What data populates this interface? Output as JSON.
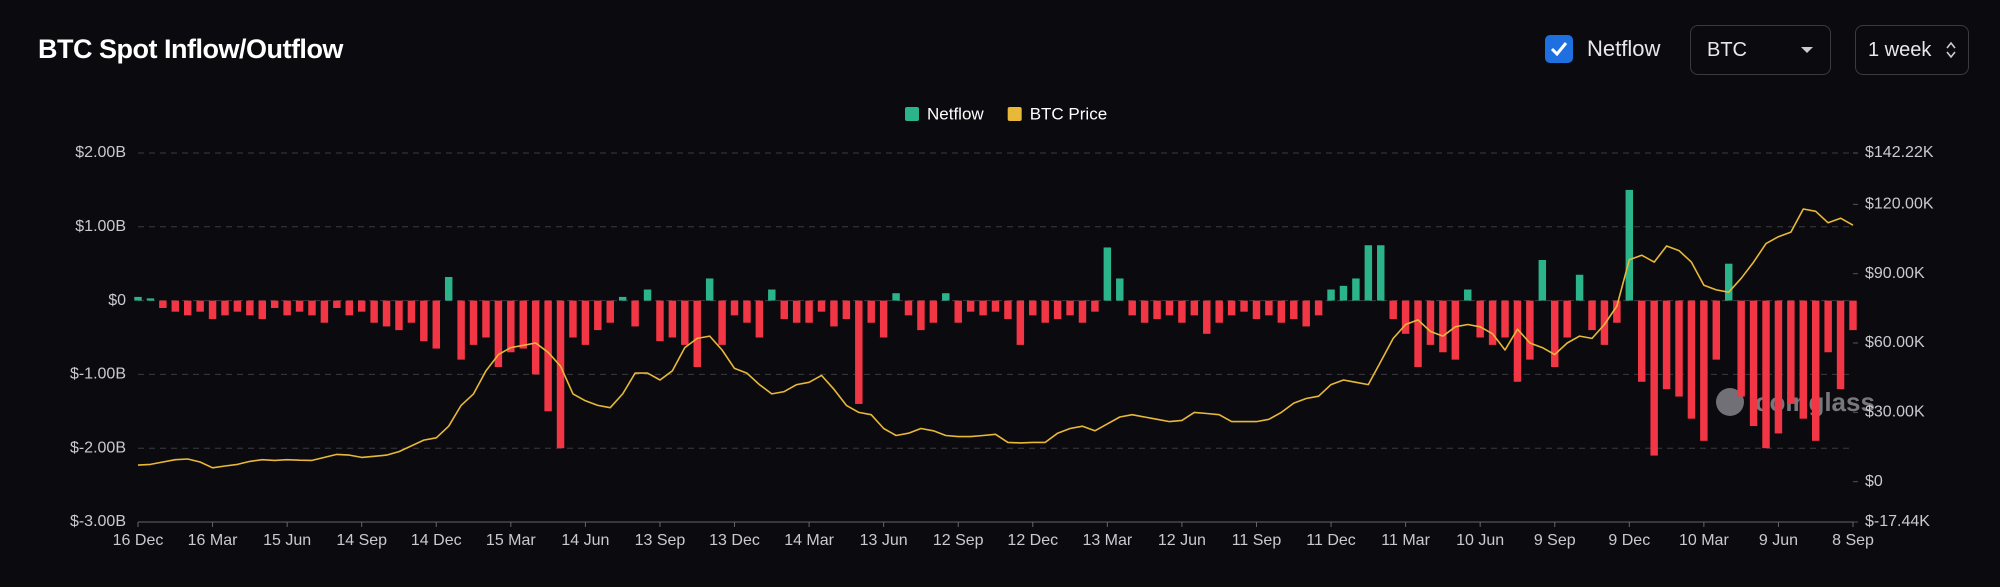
{
  "controls": {
    "checkbox_label": "Netflow",
    "asset": "BTC",
    "interval": "1 week"
  },
  "watermark": "coinglass",
  "chart_data": {
    "type": "bar",
    "title": "BTC Spot Inflow/Outflow",
    "grid": true,
    "legend": "top",
    "categories": [
      "16 Dec",
      null,
      null,
      null,
      null,
      null,
      "16 Mar",
      null,
      null,
      null,
      null,
      null,
      "15 Jun",
      null,
      null,
      null,
      null,
      null,
      "14 Sep",
      null,
      null,
      null,
      null,
      null,
      "14 Dec",
      null,
      null,
      null,
      null,
      null,
      "15 Mar",
      null,
      null,
      null,
      null,
      null,
      "14 Jun",
      null,
      null,
      null,
      null,
      null,
      "13 Sep",
      null,
      null,
      null,
      null,
      null,
      "13 Dec",
      null,
      null,
      null,
      null,
      null,
      "14 Mar",
      null,
      null,
      null,
      null,
      null,
      "13 Jun",
      null,
      null,
      null,
      null,
      null,
      "12 Sep",
      null,
      null,
      null,
      null,
      null,
      "12 Dec",
      null,
      null,
      null,
      null,
      null,
      "13 Mar",
      null,
      null,
      null,
      null,
      null,
      "12 Jun",
      null,
      null,
      null,
      null,
      null,
      "11 Sep",
      null,
      null,
      null,
      null,
      null,
      "11 Dec",
      null,
      null,
      null,
      null,
      null,
      "11 Mar",
      null,
      null,
      null,
      null,
      null,
      "10 Jun",
      null,
      null,
      null,
      null,
      null,
      "9 Sep",
      null,
      null,
      null,
      null,
      null,
      "9 Dec",
      null,
      null,
      null,
      null,
      null,
      "10 Mar",
      null,
      null,
      null,
      null,
      null,
      "9 Jun",
      null,
      null,
      null,
      null,
      null,
      "8 Sep"
    ],
    "series": [
      {
        "name": "Netflow",
        "color": "#2bb38a",
        "negative_color": "#f23645",
        "values": [
          0.05,
          0.03,
          -0.1,
          -0.15,
          -0.2,
          -0.15,
          -0.25,
          -0.2,
          -0.15,
          -0.2,
          -0.25,
          -0.1,
          -0.2,
          -0.15,
          -0.2,
          -0.3,
          -0.1,
          -0.2,
          -0.15,
          -0.3,
          -0.35,
          -0.4,
          -0.3,
          -0.55,
          -0.65,
          0.32,
          -0.8,
          -0.6,
          -0.5,
          -0.9,
          -0.7,
          -0.65,
          -1.0,
          -1.5,
          -2.0,
          -0.5,
          -0.6,
          -0.4,
          -0.3,
          0.05,
          -0.35,
          0.15,
          -0.55,
          -0.5,
          -0.6,
          -0.9,
          0.3,
          -0.6,
          -0.2,
          -0.3,
          -0.5,
          0.15,
          -0.25,
          -0.3,
          -0.3,
          -0.15,
          -0.35,
          -0.25,
          -1.4,
          -0.3,
          -0.5,
          0.1,
          -0.2,
          -0.4,
          -0.3,
          0.1,
          -0.3,
          -0.15,
          -0.2,
          -0.15,
          -0.25,
          -0.6,
          -0.2,
          -0.3,
          -0.25,
          -0.2,
          -0.3,
          -0.15,
          0.72,
          0.3,
          -0.2,
          -0.3,
          -0.25,
          -0.2,
          -0.3,
          -0.2,
          -0.45,
          -0.3,
          -0.2,
          -0.15,
          -0.25,
          -0.2,
          -0.3,
          -0.25,
          -0.35,
          -0.2,
          0.15,
          0.2,
          0.3,
          0.75,
          0.75,
          -0.25,
          -0.45,
          -0.9,
          -0.6,
          -0.7,
          -0.8,
          0.15,
          -0.5,
          -0.6,
          -0.5,
          -1.1,
          -0.8,
          0.55,
          -0.9,
          -0.5,
          0.35,
          -0.4,
          -0.6,
          -0.3,
          1.5,
          -1.1,
          -2.1,
          -1.2,
          -1.3,
          -1.6,
          -1.9,
          -0.8,
          0.5,
          -1.3,
          -1.7,
          -2.0,
          -1.8,
          -1.4,
          -1.6,
          -1.9,
          -0.7,
          -1.2,
          -0.4
        ]
      },
      {
        "name": "BTC Price",
        "type": "line",
        "axis": "y2",
        "color": "#e8b838",
        "values": [
          7.2,
          7.5,
          8.5,
          9.5,
          9.8,
          8.5,
          6,
          6.8,
          7.5,
          8.8,
          9.5,
          9.2,
          9.5,
          9.3,
          9.2,
          10.5,
          11.8,
          11.5,
          10.5,
          11,
          11.5,
          13,
          15.5,
          18,
          19,
          24,
          33,
          38,
          48,
          55,
          58,
          59,
          60,
          56,
          50,
          38,
          35,
          33,
          32,
          38,
          47,
          47,
          44,
          48,
          58,
          62,
          63,
          57,
          49,
          47,
          42,
          38,
          39,
          42,
          43,
          46,
          40,
          33,
          30,
          29,
          23,
          20,
          21,
          23,
          22,
          20,
          19.5,
          19.5,
          20,
          20.5,
          17,
          16.8,
          17,
          17,
          21,
          23,
          24,
          22,
          25,
          28,
          29,
          28,
          27,
          26,
          26.5,
          30,
          29.5,
          29,
          26,
          26,
          26,
          27,
          30,
          34,
          36,
          37,
          42,
          44,
          43,
          42,
          52,
          62,
          68,
          70,
          65,
          63,
          67,
          68,
          67,
          64,
          57,
          66,
          60,
          58,
          55,
          60,
          63,
          62,
          68,
          76,
          96,
          98,
          95,
          102,
          100,
          95,
          85,
          83,
          82,
          88,
          95,
          103,
          106,
          108,
          118,
          117,
          112,
          114,
          111
        ]
      }
    ],
    "ylim": [
      -3,
      2
    ],
    "yticks": [
      {
        "value": -3,
        "label": "$-3.00B"
      },
      {
        "value": -2,
        "label": "$-2.00B"
      },
      {
        "value": -1,
        "label": "$-1.00B"
      },
      {
        "value": 0,
        "label": "$0"
      },
      {
        "value": 1,
        "label": "$1.00B"
      },
      {
        "value": 2,
        "label": "$2.00B"
      }
    ],
    "y2lim": [
      -17.44,
      142.22
    ],
    "y2ticks": [
      {
        "value": -17.44,
        "label": "$-17.44K"
      },
      {
        "value": 0,
        "label": "$0"
      },
      {
        "value": 30,
        "label": "$30.00K"
      },
      {
        "value": 60,
        "label": "$60.00K"
      },
      {
        "value": 90,
        "label": "$90.00K"
      },
      {
        "value": 120,
        "label": "$120.00K"
      },
      {
        "value": 142.22,
        "label": "$142.22K"
      }
    ]
  }
}
